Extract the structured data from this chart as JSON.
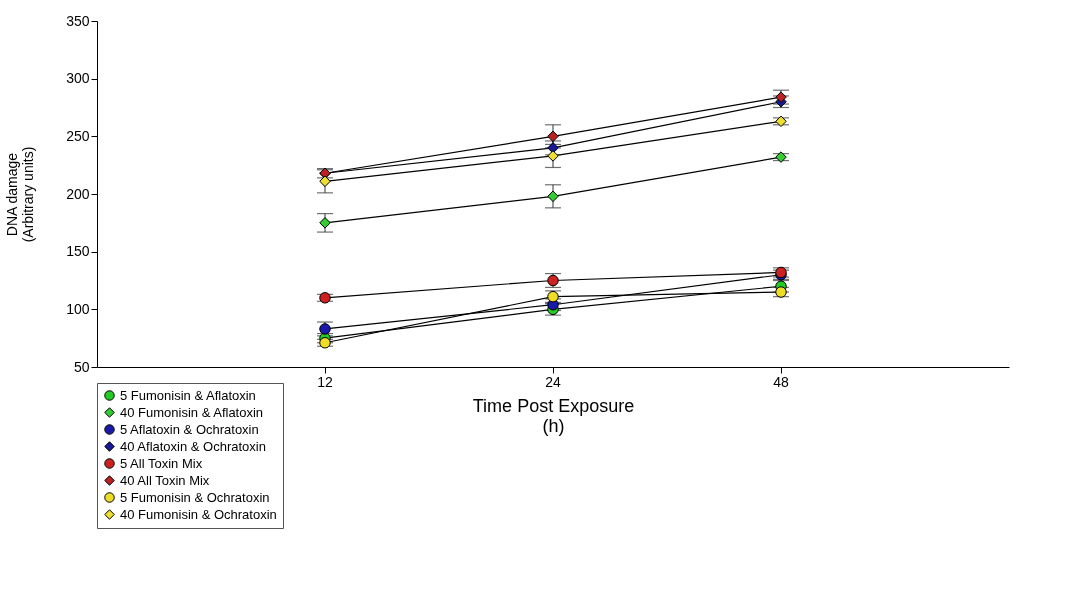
{
  "chart_data": {
    "type": "line",
    "categories": [
      "12",
      "24",
      "48"
    ],
    "xlabel": "Time Post Exposure\n(h)",
    "ylabel": "DNA damage\n(Arbitrary units)",
    "ylim": [
      50,
      350
    ],
    "yticks": [
      50,
      100,
      150,
      200,
      250,
      300,
      350
    ],
    "legend": "bottom left",
    "grid": false,
    "series": [
      {
        "name": "5 Fumonisin & Aflatoxin",
        "color": "#22cc22",
        "marker": "circle",
        "values": [
          75,
          100,
          120
        ],
        "errors": [
          4,
          5,
          5
        ]
      },
      {
        "name": "40 Fumonisin & Aflatoxin",
        "color": "#33cc33",
        "marker": "diamond",
        "values": [
          175,
          198,
          232
        ],
        "errors": [
          8,
          10,
          3
        ]
      },
      {
        "name": "5 Aflatoxin & Ochratoxin",
        "color": "#1a1aaa",
        "marker": "circle",
        "values": [
          83,
          104,
          130
        ],
        "errors": [
          6,
          5,
          4
        ]
      },
      {
        "name": "40 Aflatoxin  & Ochratoxin",
        "color": "#1a1a99",
        "marker": "diamond",
        "values": [
          218,
          240,
          280
        ],
        "errors": [
          null,
          6,
          5
        ]
      },
      {
        "name": "5 All Toxin Mix",
        "color": "#cc2222",
        "marker": "circle",
        "values": [
          110,
          125,
          132
        ],
        "errors": [
          3,
          6,
          4
        ]
      },
      {
        "name": "40 All Toxin Mix",
        "color": "#bb2222",
        "marker": "diamond",
        "values": [
          218,
          250,
          284
        ],
        "errors": [
          4,
          10,
          6
        ]
      },
      {
        "name": "5 Fumonisin & Ochratoxin",
        "color": "#eedd22",
        "marker": "circle",
        "values": [
          71,
          111,
          115
        ],
        "errors": [
          3,
          5,
          4
        ]
      },
      {
        "name": "40 Fumonisin & Ochratoxin",
        "color": "#eedd33",
        "marker": "diamond",
        "values": [
          211,
          233,
          263
        ],
        "errors": [
          10,
          10,
          3
        ]
      }
    ]
  }
}
